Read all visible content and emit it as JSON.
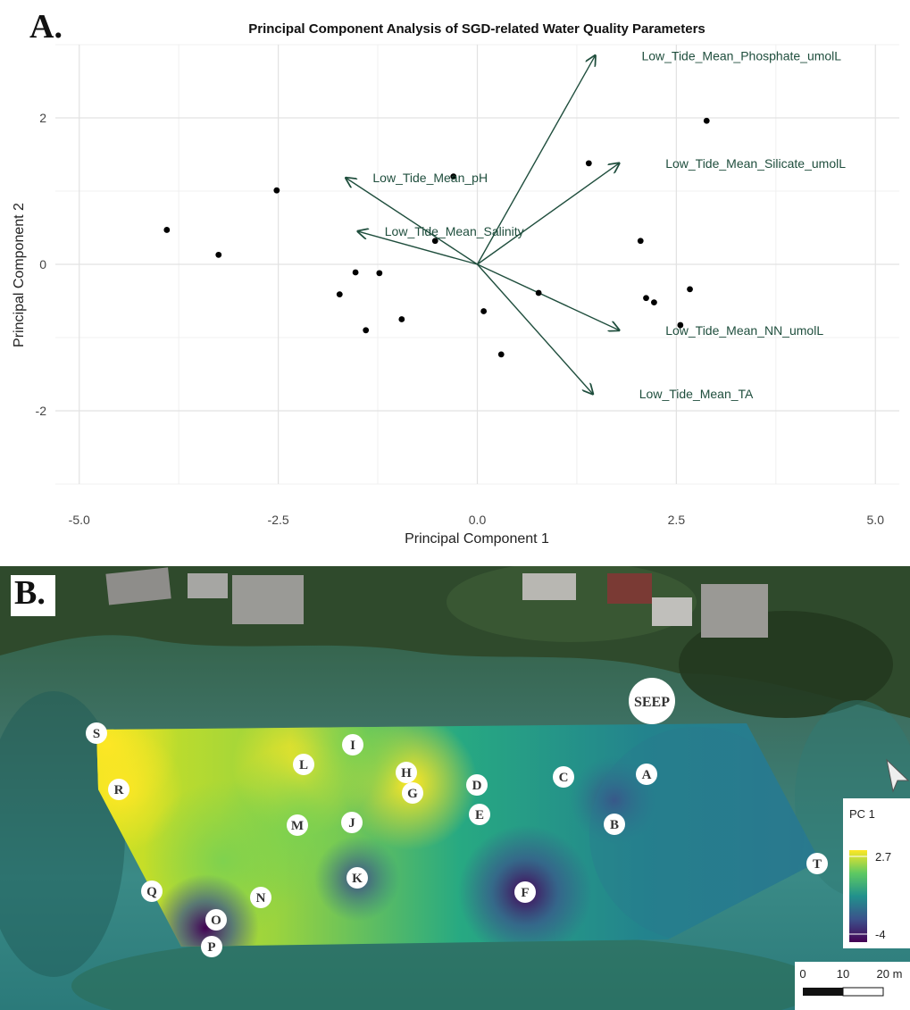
{
  "panel_a": {
    "letter": "A.",
    "title": "Principal Component Analysis of SGD-related Water Quality Parameters",
    "xlabel": "Principal Component 1",
    "ylabel": "Principal Component 2"
  },
  "panel_b": {
    "letter": "B.",
    "legend_title": "PC 1",
    "legend_max": "2.7",
    "legend_min": "-4",
    "scale_labels": [
      "0",
      "10",
      "20 m"
    ],
    "seep_label": "SEEP",
    "colors": {
      "low": "#440154",
      "mid": "#21918c",
      "high": "#fde725"
    }
  },
  "chart_data": {
    "type": "scatter",
    "title": "Principal Component Analysis of SGD-related Water Quality Parameters",
    "xlabel": "Principal Component 1",
    "ylabel": "Principal Component 2",
    "xlim": [
      -5.3,
      5.3
    ],
    "ylim": [
      -3.0,
      3.0
    ],
    "xticks": [
      -5.0,
      -2.5,
      0.0,
      2.5,
      5.0
    ],
    "yticks": [
      -2,
      0,
      2
    ],
    "grid": true,
    "points": [
      {
        "x": -3.9,
        "y": 0.47
      },
      {
        "x": -3.25,
        "y": 0.13
      },
      {
        "x": -2.52,
        "y": 1.01
      },
      {
        "x": -1.73,
        "y": -0.41
      },
      {
        "x": -1.53,
        "y": -0.11
      },
      {
        "x": -1.4,
        "y": -0.9
      },
      {
        "x": -1.23,
        "y": -0.12
      },
      {
        "x": -0.95,
        "y": -0.75
      },
      {
        "x": -0.53,
        "y": 0.32
      },
      {
        "x": -0.3,
        "y": 1.2
      },
      {
        "x": 0.08,
        "y": -0.64
      },
      {
        "x": 0.3,
        "y": -1.23
      },
      {
        "x": 0.77,
        "y": -0.39
      },
      {
        "x": 1.4,
        "y": 1.38
      },
      {
        "x": 2.05,
        "y": 0.32
      },
      {
        "x": 2.12,
        "y": -0.46
      },
      {
        "x": 2.22,
        "y": -0.52
      },
      {
        "x": 2.55,
        "y": -0.83
      },
      {
        "x": 2.67,
        "y": -0.34
      },
      {
        "x": 2.88,
        "y": 1.96
      }
    ],
    "loadings": [
      {
        "name": "Low_Tide_Mean_Phosphate_umolL",
        "x": 1.48,
        "y": 2.85
      },
      {
        "name": "Low_Tide_Mean_Silicate_umolL",
        "x": 1.78,
        "y": 1.38
      },
      {
        "name": "Low_Tide_Mean_pH",
        "x": -1.65,
        "y": 1.18
      },
      {
        "name": "Low_Tide_Mean_Salinity",
        "x": -1.5,
        "y": 0.45
      },
      {
        "name": "Low_Tide_Mean_NN_umolL",
        "x": 1.78,
        "y": -0.9
      },
      {
        "name": "Low_Tide_Mean_TA",
        "x": 1.45,
        "y": -1.77
      }
    ],
    "color_arrows": "#1f4e3d"
  },
  "map_sites": [
    {
      "label": "S",
      "pc1": 2.5
    },
    {
      "label": "R",
      "pc1": 2.4
    },
    {
      "label": "L",
      "pc1": 2.7
    },
    {
      "label": "I",
      "pc1": 1.8
    },
    {
      "label": "H",
      "pc1": 2.3
    },
    {
      "label": "G",
      "pc1": 2.6
    },
    {
      "label": "D",
      "pc1": 0.2
    },
    {
      "label": "E",
      "pc1": 0.0
    },
    {
      "label": "C",
      "pc1": -0.5
    },
    {
      "label": "A",
      "pc1": -1.0
    },
    {
      "label": "B",
      "pc1": -3.3
    },
    {
      "label": "M",
      "pc1": 1.3
    },
    {
      "label": "J",
      "pc1": 1.2
    },
    {
      "label": "K",
      "pc1": -2.4
    },
    {
      "label": "F",
      "pc1": -4.0
    },
    {
      "label": "Q",
      "pc1": 0.8
    },
    {
      "label": "N",
      "pc1": 0.5
    },
    {
      "label": "O",
      "pc1": -2.7
    },
    {
      "label": "P",
      "pc1": -1.5
    },
    {
      "label": "T",
      "pc1": -1.2
    }
  ]
}
